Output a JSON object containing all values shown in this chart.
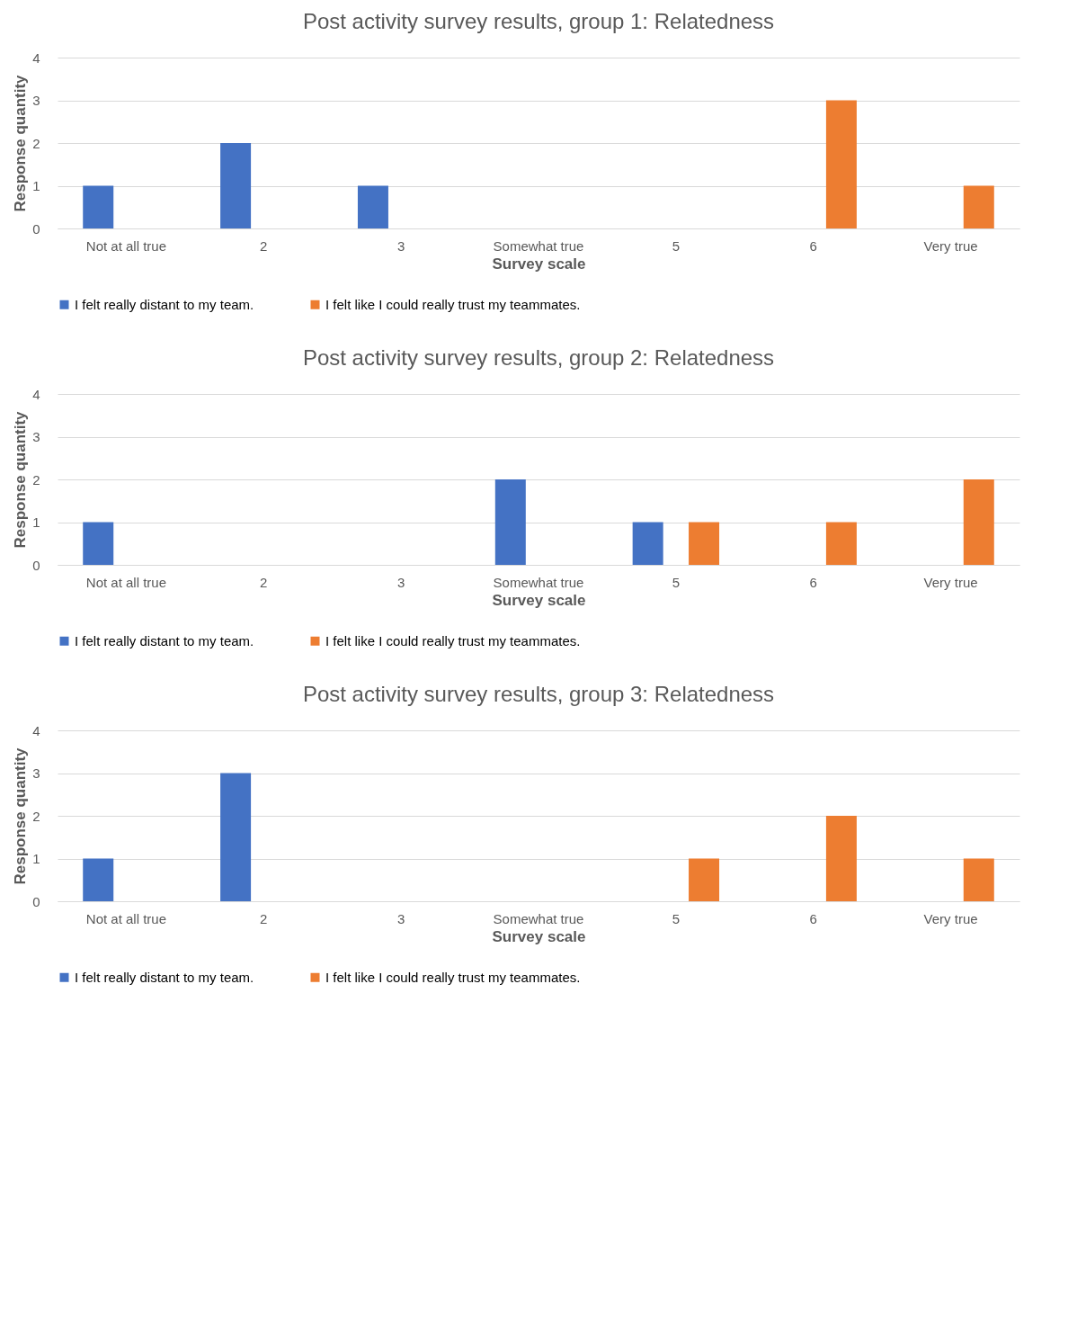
{
  "chart_data": [
    {
      "type": "bar",
      "title": "Post activity survey results, group 1: Relatedness",
      "xlabel": "Survey scale",
      "ylabel": "Response quantity",
      "categories": [
        "Not at all true",
        "2",
        "3",
        "Somewhat true",
        "5",
        "6",
        "Very true"
      ],
      "series": [
        {
          "name": "I felt really distant to my team.",
          "color": "#4472c4",
          "values": [
            1,
            2,
            1,
            0,
            0,
            0,
            0
          ]
        },
        {
          "name": "I felt like I could really trust my teammates.",
          "color": "#ed7d31",
          "values": [
            0,
            0,
            0,
            0,
            0,
            3,
            1
          ]
        }
      ],
      "ylim": [
        0,
        4
      ],
      "yticks": [
        0,
        1,
        2,
        3,
        4
      ],
      "grid": "y",
      "legend": "bottom"
    },
    {
      "type": "bar",
      "title": "Post activity survey results, group 2: Relatedness",
      "xlabel": "Survey scale",
      "ylabel": "Response quantity",
      "categories": [
        "Not at all true",
        "2",
        "3",
        "Somewhat true",
        "5",
        "6",
        "Very true"
      ],
      "series": [
        {
          "name": "I felt really distant to my team.",
          "color": "#4472c4",
          "values": [
            1,
            0,
            0,
            2,
            1,
            0,
            0
          ]
        },
        {
          "name": "I felt like I could really trust my teammates.",
          "color": "#ed7d31",
          "values": [
            0,
            0,
            0,
            0,
            1,
            1,
            2
          ]
        }
      ],
      "ylim": [
        0,
        4
      ],
      "yticks": [
        0,
        1,
        2,
        3,
        4
      ],
      "grid": "y",
      "legend": "bottom"
    },
    {
      "type": "bar",
      "title": "Post activity survey results, group 3: Relatedness",
      "xlabel": "Survey scale",
      "ylabel": "Response quantity",
      "categories": [
        "Not at all true",
        "2",
        "3",
        "Somewhat true",
        "5",
        "6",
        "Very true"
      ],
      "series": [
        {
          "name": "I felt really distant to my team.",
          "color": "#4472c4",
          "values": [
            1,
            3,
            0,
            0,
            0,
            0,
            0
          ]
        },
        {
          "name": "I felt like I could really trust my teammates.",
          "color": "#ed7d31",
          "values": [
            0,
            0,
            0,
            0,
            1,
            2,
            1
          ]
        }
      ],
      "ylim": [
        0,
        4
      ],
      "yticks": [
        0,
        1,
        2,
        3,
        4
      ],
      "grid": "y",
      "legend": "bottom"
    }
  ]
}
